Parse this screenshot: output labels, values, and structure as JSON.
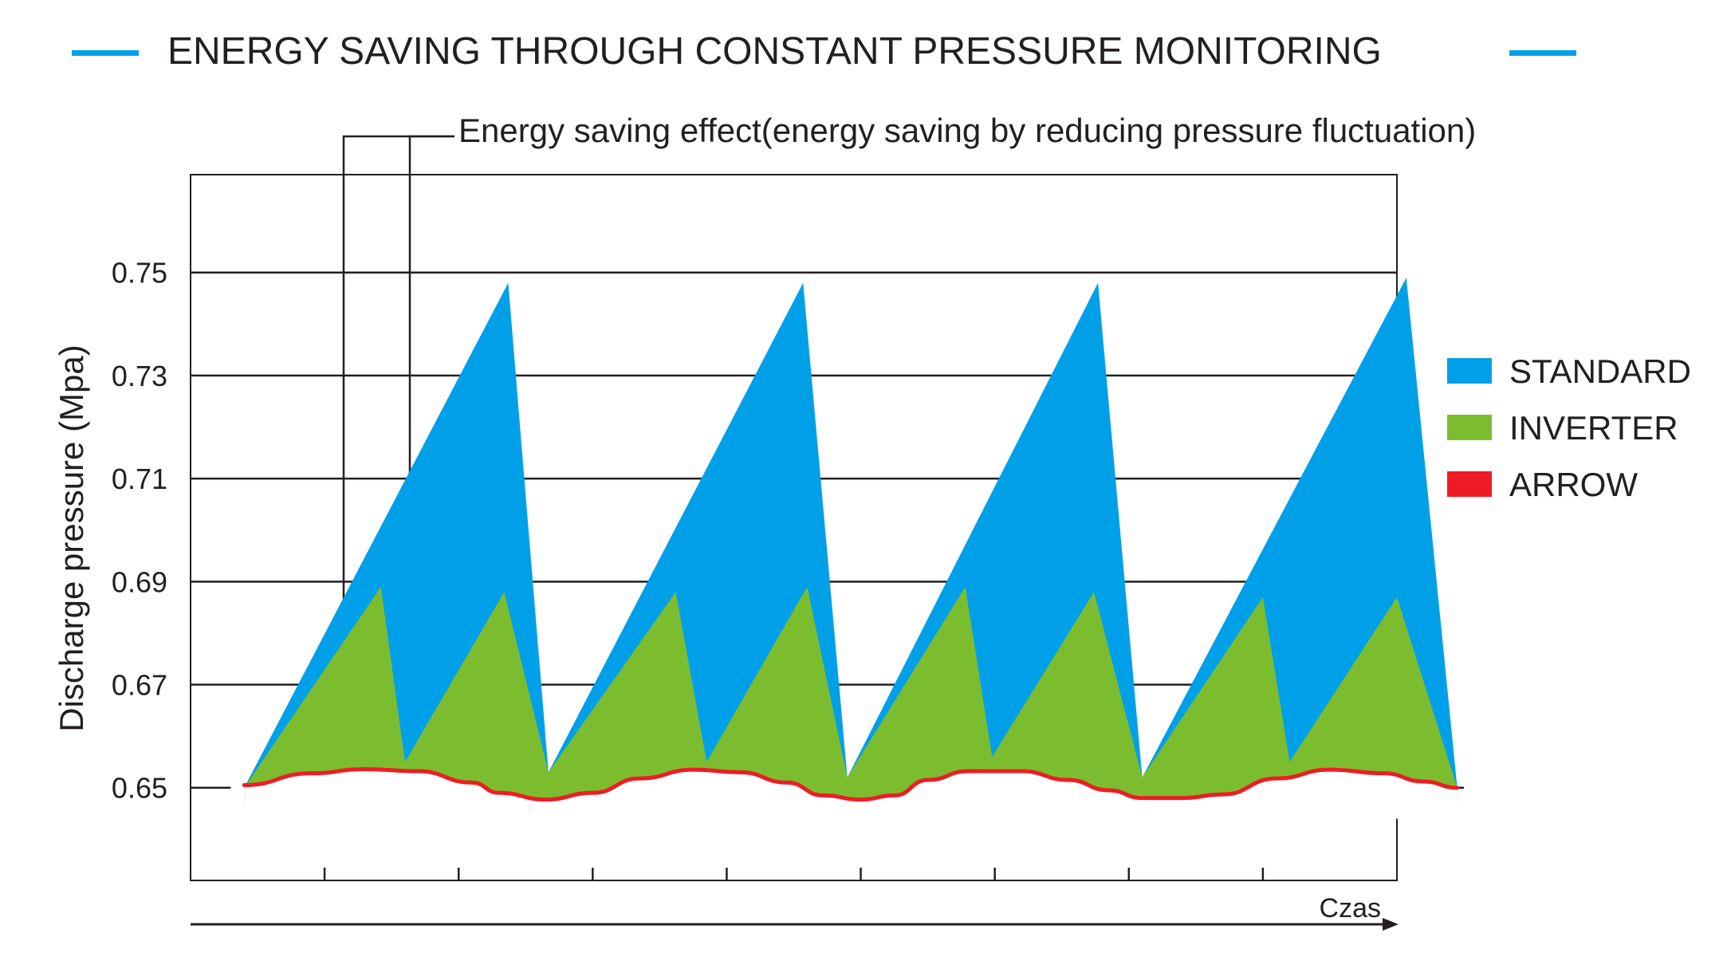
{
  "colors": {
    "standard": "#00a0e9",
    "inverter": "#7bbd2e",
    "arrow": "#ee1c25",
    "title_accent": "#00a0e9",
    "axis": "#231f20"
  },
  "chart_data": {
    "type": "area",
    "title": "ENERGY SAVING THROUGH CONSTANT PRESSURE MONITORING",
    "annotation": "Energy saving effect(energy saving by reducing pressure fluctuation)",
    "ylabel": "Discharge pressure (Mpa)",
    "xlabel": "Czas",
    "yticks": [
      "0.75",
      "0.73",
      "0.71",
      "0.69",
      "0.67",
      "0.65"
    ],
    "ytick_values": [
      0.75,
      0.73,
      0.71,
      0.69,
      0.67,
      0.65
    ],
    "ylim": [
      0.632,
      0.769
    ],
    "xlim": [
      0,
      9
    ],
    "xticks": [
      1,
      2,
      3,
      4,
      5,
      6,
      7,
      8
    ],
    "legend": [
      {
        "key": "standard",
        "label": "STANDARD"
      },
      {
        "key": "inverter",
        "label": "INVERTER"
      },
      {
        "key": "arrow",
        "label": "ARROW"
      }
    ],
    "series": [
      {
        "name": "STANDARD",
        "key": "standard",
        "cycles": [
          [
            [
              0.4,
              0.65
            ],
            [
              2.37,
              0.748
            ],
            [
              2.67,
              0.653
            ]
          ],
          [
            [
              2.67,
              0.653
            ],
            [
              4.57,
              0.748
            ],
            [
              4.9,
              0.652
            ]
          ],
          [
            [
              4.9,
              0.652
            ],
            [
              6.77,
              0.748
            ],
            [
              7.1,
              0.652
            ]
          ],
          [
            [
              7.1,
              0.652
            ],
            [
              9.07,
              0.749
            ],
            [
              9.45,
              0.65
            ]
          ]
        ]
      },
      {
        "name": "INVERTER",
        "key": "inverter",
        "points": [
          [
            0.4,
            0.65
          ],
          [
            1.42,
            0.689
          ],
          [
            1.6,
            0.655
          ],
          [
            2.34,
            0.688
          ],
          [
            2.67,
            0.653
          ],
          [
            3.62,
            0.688
          ],
          [
            3.85,
            0.655
          ],
          [
            4.6,
            0.689
          ],
          [
            4.9,
            0.652
          ],
          [
            5.78,
            0.689
          ],
          [
            5.98,
            0.656
          ],
          [
            6.74,
            0.688
          ],
          [
            7.1,
            0.652
          ],
          [
            8.0,
            0.687
          ],
          [
            8.2,
            0.655
          ],
          [
            9.0,
            0.687
          ],
          [
            9.45,
            0.65
          ]
        ]
      },
      {
        "name": "ARROW",
        "key": "arrow",
        "points": [
          [
            0.4,
            0.6505
          ],
          [
            0.9,
            0.6528
          ],
          [
            1.3,
            0.6536
          ],
          [
            1.7,
            0.6532
          ],
          [
            2.1,
            0.651
          ],
          [
            2.3,
            0.649
          ],
          [
            2.65,
            0.6477
          ],
          [
            3.0,
            0.649
          ],
          [
            3.35,
            0.6518
          ],
          [
            3.75,
            0.6535
          ],
          [
            4.1,
            0.653
          ],
          [
            4.45,
            0.651
          ],
          [
            4.72,
            0.6485
          ],
          [
            5.0,
            0.6477
          ],
          [
            5.25,
            0.6485
          ],
          [
            5.5,
            0.6515
          ],
          [
            5.8,
            0.6532
          ],
          [
            6.2,
            0.6532
          ],
          [
            6.55,
            0.6515
          ],
          [
            6.85,
            0.6495
          ],
          [
            7.1,
            0.648
          ],
          [
            7.4,
            0.648
          ],
          [
            7.7,
            0.6487
          ],
          [
            8.1,
            0.6518
          ],
          [
            8.5,
            0.6535
          ],
          [
            8.9,
            0.6528
          ],
          [
            9.2,
            0.6512
          ],
          [
            9.45,
            0.65
          ]
        ]
      }
    ]
  }
}
